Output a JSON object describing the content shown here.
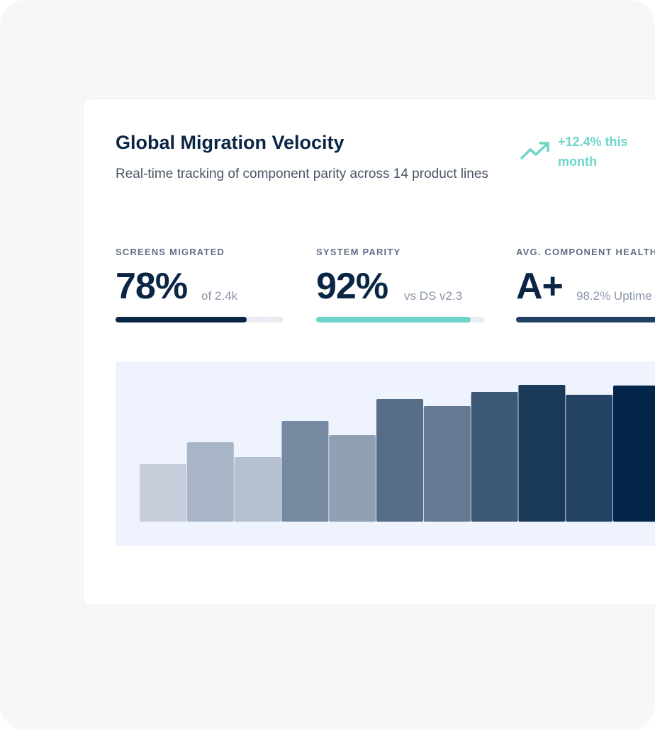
{
  "header": {
    "title": "Global Migration Velocity",
    "subtitle": "Real-time tracking of component parity across 14 product lines",
    "trend": "+12.4% this month"
  },
  "metrics": [
    {
      "label": "SCREENS MIGRATED",
      "value": "78%",
      "detail": "of 2.4k",
      "progress": 78,
      "color": "#0b2545"
    },
    {
      "label": "SYSTEM PARITY",
      "value": "92%",
      "detail": "vs DS v2.3",
      "progress": 92,
      "color": "#6dd5c9"
    },
    {
      "label": "AVG. COMPONENT HEALTH",
      "value": "A+",
      "detail": "98.2% Uptime",
      "progress": 98.2,
      "color": "#1f3f63"
    }
  ],
  "chart_data": {
    "type": "bar",
    "values": [
      81,
      112,
      91,
      142,
      122,
      173,
      163,
      183,
      193,
      179,
      192
    ],
    "colors": [
      "#c4cdd9",
      "#a8b5c6",
      "#b4bfd0",
      "#7689a0",
      "#8fa0b5",
      "#566d88",
      "#647a93",
      "#3d5874",
      "#1b3a5a",
      "#244364",
      "#04254a"
    ],
    "ylim": [
      0,
      226
    ]
  }
}
